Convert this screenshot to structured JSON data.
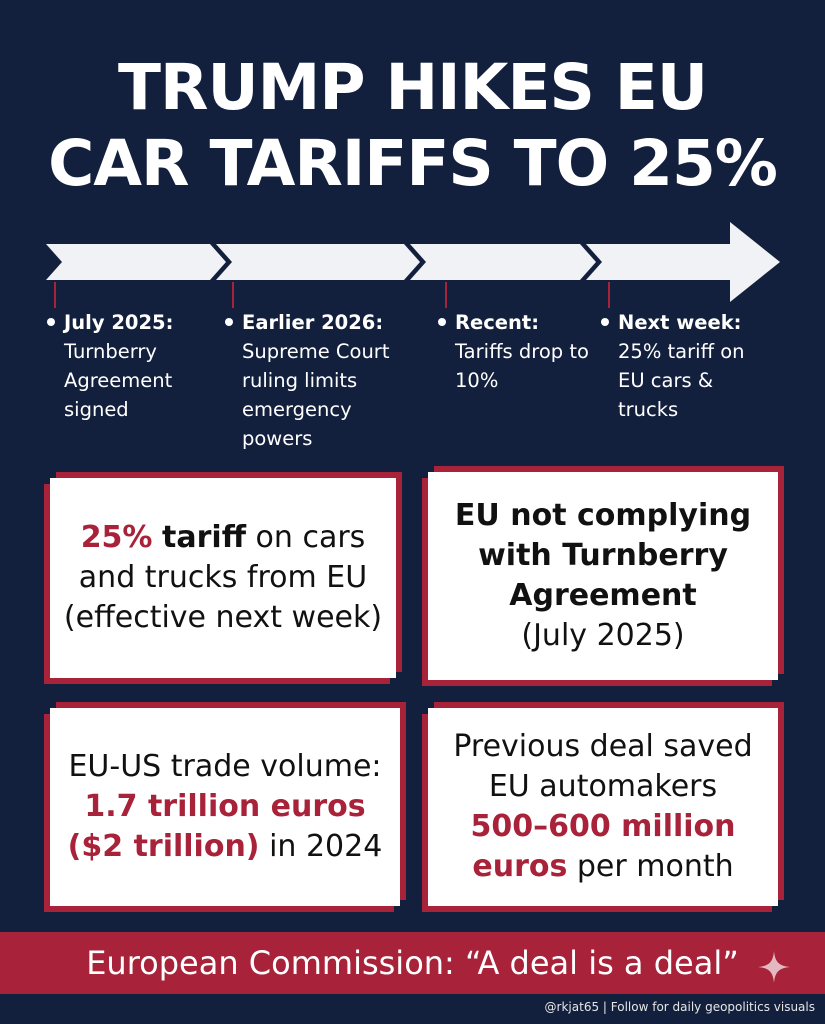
{
  "title": {
    "line1": "TRUMP HIKES EU",
    "line2": "CAR TARIFFS TO 25%"
  },
  "timeline": [
    {
      "date": "July 2025:",
      "desc": "Turnberry Agreement signed"
    },
    {
      "date": "Earlier 2026:",
      "desc": "Supreme Court ruling limits emergency powers"
    },
    {
      "date": "Recent:",
      "desc": "Tariffs drop to 10%"
    },
    {
      "date": "Next week:",
      "desc": "25% tariff on EU cars & trucks"
    }
  ],
  "cards": {
    "tariff": {
      "pct": "25%",
      "word": "tariff",
      "rest1": " on cars",
      "line2": "and trucks from EU",
      "line3": "(effective next week)"
    },
    "compliance": {
      "line1": "EU not complying",
      "line2": "with Turnberry",
      "line3": "Agreement",
      "line4": "(July 2025)"
    },
    "trade": {
      "line1": "EU-US trade volume:",
      "amount": "1.7 trillion euros",
      "usd": "($2 trillion)",
      "year": " in 2024"
    },
    "savings": {
      "line1": "Previous deal saved",
      "line2": "EU automakers",
      "amount": "500–600 million",
      "unit": "euros",
      "rest": " per month"
    }
  },
  "footer": {
    "quote": "European Commission: “A deal is a deal”",
    "credit": "@rkjat65 | Follow for daily geopolitics visuals"
  },
  "colors": {
    "background": "#13203d",
    "accent": "#a8223a",
    "card": "#ffffff"
  },
  "icons": [
    "sparkle-icon"
  ]
}
